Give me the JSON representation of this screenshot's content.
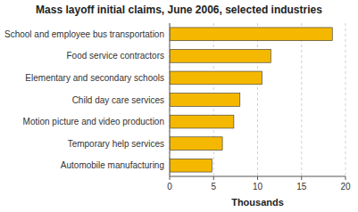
{
  "chart_data": {
    "type": "bar",
    "orientation": "horizontal",
    "title": "Mass layoff initial claims, June 2006, selected industries",
    "categories": [
      "Automobile manufacturing",
      "Temporary help services",
      "Motion picture and video production",
      "Child day care services",
      "Elementary and secondary schools",
      "Food service contractors",
      "School and employee bus transportation"
    ],
    "values": [
      4.8,
      6.0,
      7.3,
      8.0,
      10.5,
      11.5,
      18.5
    ],
    "color": "#F5B800",
    "xlabel": "Thousands",
    "xlim": [
      0,
      20
    ],
    "xticks": [
      0,
      5,
      10,
      15,
      20
    ],
    "grid": true
  }
}
